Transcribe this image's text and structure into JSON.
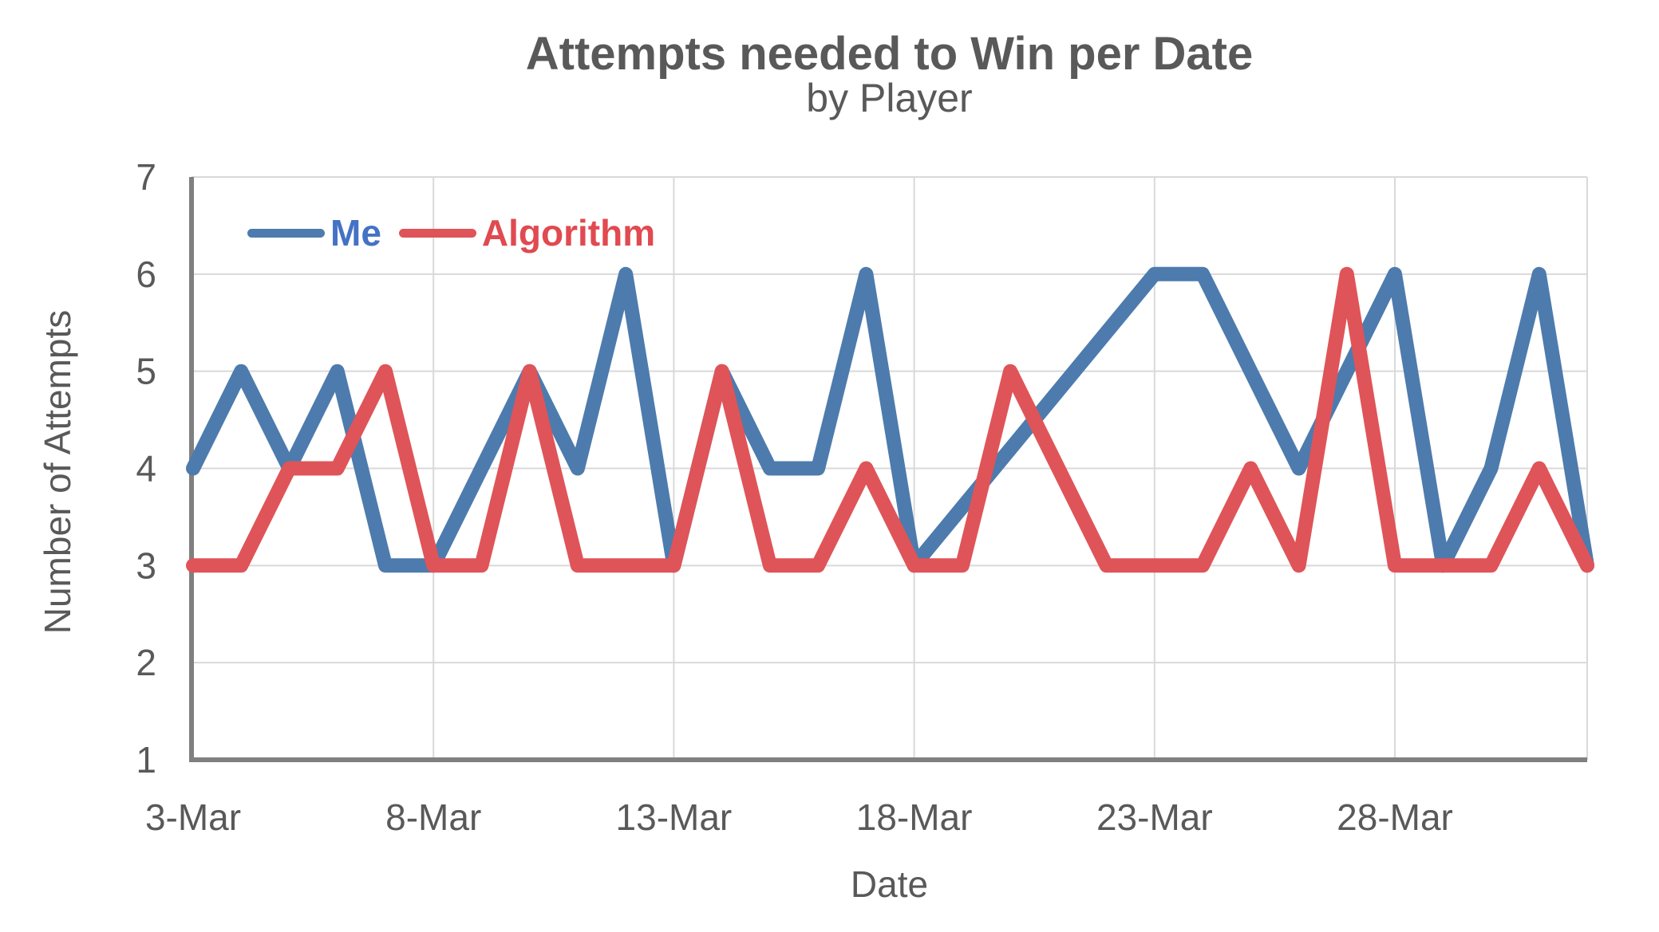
{
  "chart": {
    "title": "Attempts needed to Win per Date",
    "subtitle": "by Player",
    "x_axis_title": "Date",
    "y_axis_title": "Number of Attempts"
  },
  "legend": {
    "items": [
      {
        "label": "Me",
        "swatch_color": "#4D7BAD",
        "text_color": "#4472C4"
      },
      {
        "label": "Algorithm",
        "swatch_color": "#DF5458",
        "text_color": "#E04A50"
      }
    ]
  },
  "chart_data": {
    "type": "line",
    "title": "Attempts needed to Win per Date",
    "subtitle": "by Player",
    "xlabel": "Date",
    "ylabel": "Number of Attempts",
    "x": [
      "3-Mar",
      "4-Mar",
      "5-Mar",
      "6-Mar",
      "7-Mar",
      "8-Mar",
      "9-Mar",
      "10-Mar",
      "11-Mar",
      "12-Mar",
      "13-Mar",
      "14-Mar",
      "15-Mar",
      "16-Mar",
      "17-Mar",
      "18-Mar",
      "19-Mar",
      "20-Mar",
      "21-Mar",
      "22-Mar",
      "23-Mar",
      "24-Mar",
      "25-Mar",
      "26-Mar",
      "27-Mar",
      "28-Mar",
      "29-Mar",
      "30-Mar",
      "31-Mar",
      "1-Apr"
    ],
    "series": [
      {
        "name": "Me",
        "color": "#4D7BAD",
        "values": [
          4,
          5,
          4,
          5,
          3,
          3,
          4,
          5,
          4,
          6,
          3,
          5,
          4,
          4,
          6,
          3,
          null,
          null,
          null,
          null,
          6,
          6,
          5,
          4,
          5,
          6,
          3,
          4,
          6,
          3
        ]
      },
      {
        "name": "Algorithm",
        "color": "#DF5458",
        "values": [
          3,
          3,
          4,
          4,
          5,
          3,
          3,
          5,
          3,
          3,
          3,
          5,
          3,
          3,
          4,
          3,
          3,
          5,
          4,
          3,
          3,
          3,
          4,
          3,
          6,
          3,
          3,
          3,
          4,
          3
        ]
      }
    ],
    "ylim": [
      1,
      7
    ],
    "y_ticks": [
      1,
      2,
      3,
      4,
      5,
      6,
      7
    ],
    "x_tick_indices": [
      0,
      5,
      10,
      15,
      20,
      25
    ],
    "x_tick_labels": [
      "3-Mar",
      "8-Mar",
      "13-Mar",
      "18-Mar",
      "23-Mar",
      "28-Mar"
    ],
    "grid": true,
    "gaps_connected": true,
    "legend_position": "inside-top-left",
    "colors": {
      "grid": "#D9D9D9",
      "axis": "#808080",
      "tick_text": "#595959"
    }
  }
}
